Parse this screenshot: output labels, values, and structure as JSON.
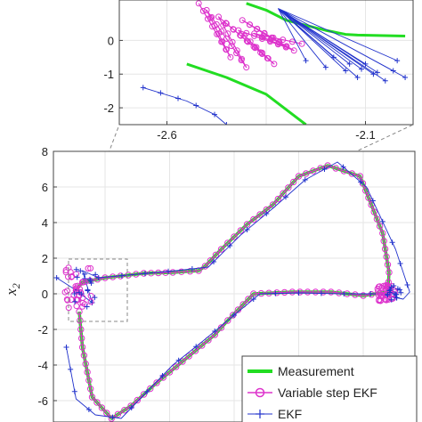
{
  "colors": {
    "measurement": "#22dd22",
    "variable_step_ekf": "#dd33cc",
    "ekf": "#2233cc",
    "axes": "#444444",
    "grid": "#e6e6e6",
    "zoom_box": "#888888"
  },
  "chart_data": [
    {
      "id": "main",
      "type": "line",
      "xlabel": "",
      "ylabel": "x_2",
      "ylabel_base": "x",
      "ylabel_sub": "2",
      "xlim": [
        -2.8,
        2.8
      ],
      "ylim": [
        -7.2,
        8
      ],
      "yticks": [
        8,
        6,
        4,
        2,
        0,
        -2,
        -4,
        -6
      ],
      "ytick_labels": [
        "8",
        "6",
        "4",
        "2",
        "0",
        "-2",
        "-4",
        "-6"
      ],
      "grid": true,
      "legend_position": "bottom-right",
      "legend": [
        "Measurement",
        "Variable step EKF",
        "EKF"
      ],
      "series": [
        {
          "name": "Measurement",
          "style": "line",
          "x": [
            -2.45,
            -2.35,
            -2.0,
            -1.4,
            -0.95,
            -0.55,
            -0.45,
            -0.2,
            0.2,
            0.6,
            1.0,
            1.45,
            1.95,
            2.3,
            2.4,
            2.38,
            2.0,
            1.5,
            0.9,
            0.3,
            -0.1,
            -0.3,
            -0.7,
            -1.2,
            -1.6,
            -1.9,
            -2.2,
            -2.35,
            -2.4
          ],
          "y": [
            0.2,
            0.65,
            0.9,
            1.15,
            1.2,
            1.3,
            1.55,
            2.5,
            3.9,
            5.0,
            6.6,
            7.2,
            6.6,
            3.4,
            1.2,
            0.1,
            -0.1,
            0.1,
            0.1,
            0.0,
            -1.5,
            -2.3,
            -3.5,
            -5.0,
            -6.3,
            -7.0,
            -5.8,
            -3.0,
            -1.0
          ]
        },
        {
          "name": "Variable step EKF",
          "style": "line-circle",
          "x": [
            -2.45,
            -2.35,
            -2.0,
            -1.4,
            -0.95,
            -0.55,
            -0.45,
            -0.2,
            0.2,
            0.6,
            1.0,
            1.45,
            1.95,
            2.3,
            2.4,
            2.38,
            2.0,
            1.5,
            0.9,
            0.3,
            -0.1,
            -0.3,
            -0.7,
            -1.2,
            -1.6,
            -1.9,
            -2.2,
            -2.35,
            -2.4
          ],
          "y": [
            0.2,
            0.65,
            0.9,
            1.15,
            1.2,
            1.3,
            1.55,
            2.5,
            3.9,
            5.0,
            6.6,
            7.2,
            6.6,
            3.4,
            1.2,
            0.1,
            -0.1,
            0.1,
            0.1,
            0.0,
            -1.5,
            -2.3,
            -3.5,
            -5.0,
            -6.3,
            -7.0,
            -5.8,
            -3.0,
            -1.0
          ]
        },
        {
          "name": "EKF",
          "style": "line-plus",
          "x": [
            -2.75,
            -2.45,
            -2.2,
            -2.35,
            -2.1,
            -1.5,
            -0.9,
            -0.4,
            0.1,
            0.6,
            1.1,
            1.6,
            2.05,
            2.5,
            2.72,
            2.62,
            2.25,
            1.7,
            1.0,
            0.4,
            -0.2,
            -0.5,
            -0.95,
            -1.35,
            -1.75,
            -2.15,
            -2.45,
            -2.6
          ],
          "y": [
            0.9,
            0.2,
            -0.5,
            1.3,
            0.9,
            1.1,
            1.3,
            1.5,
            3.3,
            4.8,
            6.4,
            7.4,
            6.0,
            2.5,
            0.1,
            -0.3,
            0.0,
            0.0,
            0.05,
            0.0,
            -1.8,
            -2.7,
            -4.0,
            -5.5,
            -7.0,
            -6.8,
            -5.9,
            -3.0
          ]
        }
      ]
    },
    {
      "id": "inset",
      "type": "line",
      "xlim": [
        -2.72,
        -1.98
      ],
      "ylim": [
        -2.5,
        1.2
      ],
      "xticks": [
        -2.6,
        -2.1
      ],
      "xtick_labels": [
        "-2.6",
        "-2.1"
      ],
      "yticks": [
        0,
        -1,
        -2
      ],
      "ytick_labels": [
        "0",
        "-1",
        "-2"
      ],
      "grid": true,
      "zoom_region": {
        "xlim": [
          -2.7,
          -2.05
        ],
        "ylim": [
          -2.3,
          2.6
        ]
      },
      "series": [
        {
          "name": "Measurement",
          "style": "line",
          "x": [
            -2.4,
            -2.35,
            -2.3,
            -2.25,
            -2.2,
            -2.18,
            -2.15,
            -2.12,
            -2.08,
            -2.0
          ],
          "y": [
            1.1,
            0.9,
            0.6,
            0.45,
            0.3,
            0.25,
            0.18,
            0.16,
            0.15,
            0.13
          ]
        },
        {
          "name": "Measurement",
          "style": "line",
          "x": [
            -2.55,
            -2.45,
            -2.35,
            -2.25
          ],
          "y": [
            -0.7,
            -1.1,
            -1.6,
            -2.5
          ]
        },
        {
          "name": "Variable step EKF",
          "style": "zigzag-circle",
          "x": [
            -2.52,
            -2.44,
            -2.5,
            -2.4,
            -2.47,
            -2.36,
            -2.45,
            -2.33,
            -2.42,
            -2.3,
            -2.41,
            -2.28,
            -2.38,
            -2.26
          ],
          "y": [
            1.1,
            -0.5,
            0.9,
            -0.8,
            0.7,
            -0.4,
            0.5,
            -0.7,
            0.3,
            -0.2,
            0.6,
            -0.3,
            0.2,
            -0.1
          ]
        },
        {
          "name": "EKF",
          "style": "fan-plus",
          "x": [
            -2.25,
            -2.2,
            -2.15,
            -2.12,
            -2.1,
            -2.08,
            -2.05,
            -2.03,
            -2.0,
            -2.18,
            -2.14,
            -2.11,
            -2.07,
            -2.02
          ],
          "y": [
            -0.6,
            -0.8,
            -0.9,
            -1.1,
            -0.7,
            -1.0,
            -1.2,
            -0.9,
            -1.1,
            -0.5,
            -0.7,
            -0.85,
            -0.95,
            -0.6
          ]
        },
        {
          "name": "EKF",
          "style": "line-plus",
          "x": [
            -2.66,
            -2.55,
            -2.48,
            -2.45
          ],
          "y": [
            -1.4,
            -1.8,
            -2.2,
            -2.5
          ]
        }
      ]
    }
  ]
}
